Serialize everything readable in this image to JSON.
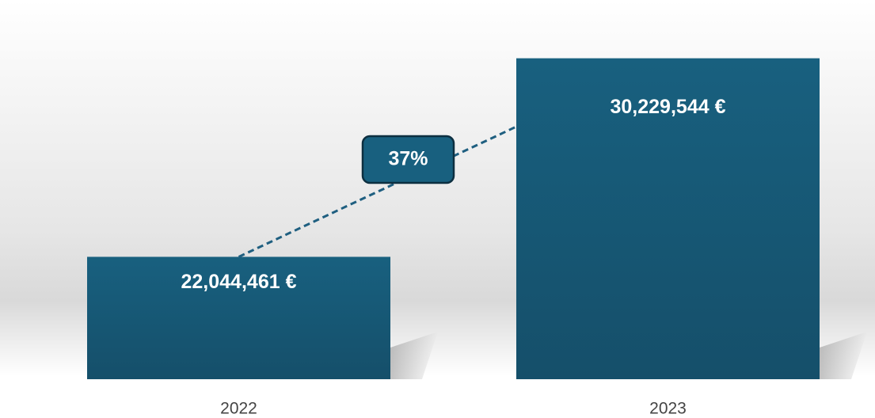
{
  "chart_data": {
    "type": "bar",
    "categories": [
      "2022",
      "2023"
    ],
    "values": [
      22044461,
      30229544
    ],
    "value_labels": [
      "22,044,461 €",
      "30,229,544 €"
    ],
    "color": "#18607f",
    "ylim": [
      17000000,
      31000000
    ],
    "annotation": "37%"
  }
}
